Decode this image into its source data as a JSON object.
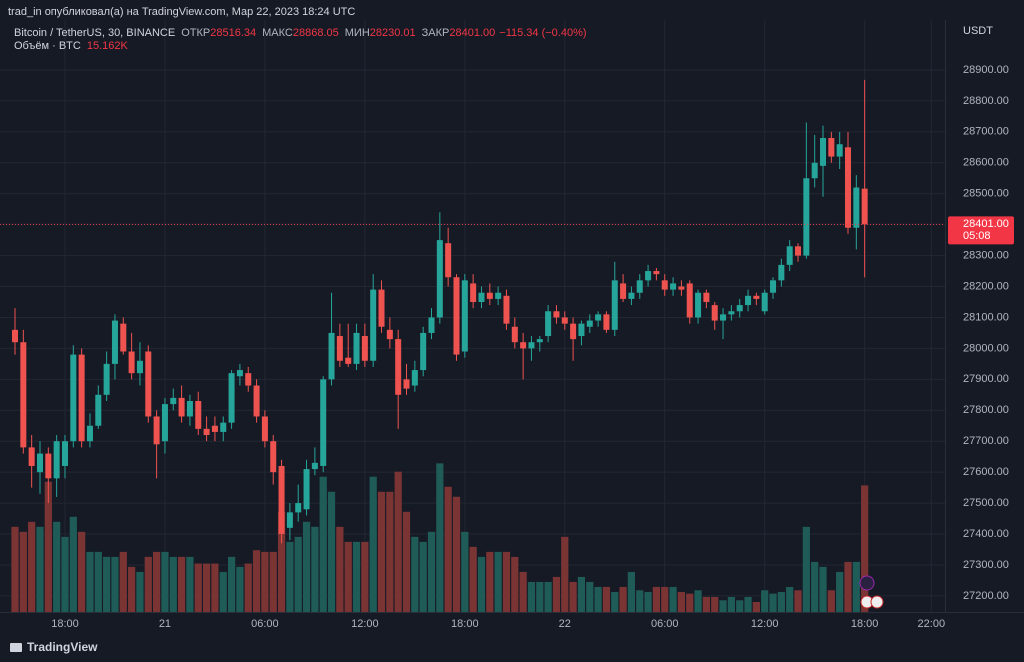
{
  "header": {
    "text": "trad_in опубликовал(а) на TradingView.com, Мар 22, 2023 18:24 UTC"
  },
  "footer": {
    "brand": "TradingView"
  },
  "chart_data": {
    "type": "candlestick",
    "legend": {
      "symbol": "Bitcoin / TetherUS, 30, BINANCE",
      "open_label": "ОТКР",
      "open": "28516.34",
      "high_label": "МАКС",
      "high": "28868.05",
      "low_label": "МИН",
      "low": "28230.01",
      "close_label": "ЗАКР",
      "close": "28401.00",
      "change": "−115.34 (−0.40%)",
      "volume_name": "Объём · BTC",
      "volume": "15.162K"
    },
    "y_axis_label": "USDT",
    "last_price": {
      "value": 28401,
      "label": "28401.00",
      "countdown": "05:08"
    },
    "categories": [
      null,
      null,
      null,
      null,
      null,
      null,
      "18:00",
      null,
      null,
      null,
      null,
      null,
      null,
      null,
      null,
      null,
      null,
      null,
      "21",
      null,
      null,
      null,
      null,
      null,
      null,
      null,
      null,
      null,
      null,
      null,
      "06:00",
      null,
      null,
      null,
      null,
      null,
      null,
      null,
      null,
      null,
      null,
      null,
      "12:00",
      null,
      null,
      null,
      null,
      null,
      null,
      null,
      null,
      null,
      null,
      null,
      "18:00",
      null,
      null,
      null,
      null,
      null,
      null,
      null,
      null,
      null,
      null,
      null,
      "22",
      null,
      null,
      null,
      null,
      null,
      null,
      null,
      null,
      null,
      null,
      null,
      "06:00",
      null,
      null,
      null,
      null,
      null,
      null,
      null,
      null,
      null,
      null,
      null,
      "12:00",
      null,
      null,
      null,
      null,
      null,
      null,
      null,
      null,
      null,
      null,
      null,
      "18:00",
      null,
      null,
      null,
      null,
      null,
      null,
      null,
      "22:00"
    ],
    "open": [
      28060,
      28020,
      27680,
      27600,
      27660,
      27580,
      27620,
      27700,
      27980,
      27700,
      27750,
      27850,
      27950,
      28080,
      27990,
      27920,
      27990,
      27780,
      27700,
      27820,
      27840,
      27780,
      27830,
      27740,
      27750,
      27730,
      27760,
      27910,
      27920,
      27880,
      27780,
      27700,
      27620,
      27420,
      27470,
      27480,
      27610,
      27620,
      27900,
      28040,
      27970,
      27950,
      28040,
      27960,
      28190,
      28060,
      28030,
      27900,
      27880,
      27930,
      28050,
      28100,
      28340,
      28230,
      27990,
      28210,
      28150,
      28180,
      28160,
      28170,
      28070,
      28020,
      28000,
      28020,
      28040,
      28120,
      28100,
      28080,
      28040,
      28070,
      28090,
      28110,
      28060,
      28210,
      28160,
      28180,
      28220,
      28250,
      28220,
      28190,
      28200,
      28210,
      28100,
      28180,
      28140,
      28090,
      28110,
      28120,
      28140,
      28170,
      28120,
      28180,
      28220,
      28270,
      28330,
      28300,
      28550,
      28590,
      28680,
      28620,
      28650,
      28390,
      28516.34,
      null,
      null,
      null,
      null,
      null,
      null,
      null,
      null
    ],
    "high": [
      28130,
      28060,
      27720,
      27700,
      27680,
      27720,
      27720,
      28010,
      28000,
      27790,
      27880,
      27990,
      28110,
      28100,
      28050,
      28020,
      28010,
      27800,
      27840,
      27870,
      27880,
      27850,
      27860,
      27780,
      27780,
      27780,
      27930,
      27950,
      27940,
      27900,
      27800,
      27720,
      27640,
      27500,
      27560,
      27640,
      27680,
      27910,
      28180,
      28080,
      28080,
      28080,
      28080,
      28240,
      28220,
      28100,
      28060,
      27950,
      27960,
      28070,
      28130,
      28440,
      28390,
      28240,
      28240,
      28240,
      28200,
      28210,
      28200,
      28190,
      28100,
      28050,
      28040,
      28040,
      28140,
      28140,
      28120,
      28100,
      28090,
      28110,
      28120,
      28120,
      28280,
      28240,
      28200,
      28240,
      28270,
      28260,
      28240,
      28230,
      28220,
      28220,
      28190,
      28190,
      28150,
      28130,
      28140,
      28160,
      28190,
      28180,
      28190,
      28230,
      28290,
      28350,
      28340,
      28730,
      28690,
      28720,
      28700,
      28700,
      28700,
      28560,
      28868.05,
      null,
      null,
      null,
      null,
      null,
      null,
      null,
      null
    ],
    "low": [
      27980,
      27660,
      27550,
      27530,
      27500,
      27520,
      27580,
      27680,
      27680,
      27680,
      27740,
      27830,
      27900,
      27980,
      27900,
      27880,
      27760,
      27580,
      27660,
      27800,
      27760,
      27750,
      27720,
      27700,
      27700,
      27700,
      27740,
      27880,
      27860,
      27760,
      27680,
      27560,
      27370,
      27380,
      27440,
      27460,
      27590,
      27600,
      27880,
      27940,
      27940,
      27930,
      27940,
      27940,
      28050,
      28000,
      27740,
      27850,
      27860,
      27910,
      28030,
      28080,
      28200,
      27960,
      27970,
      28130,
      28130,
      28140,
      28140,
      28060,
      28000,
      27900,
      27960,
      27990,
      28020,
      28080,
      28060,
      27960,
      28010,
      28050,
      28070,
      28050,
      28040,
      28150,
      28140,
      28160,
      28200,
      28220,
      28170,
      28170,
      28170,
      28080,
      28080,
      28130,
      28060,
      28030,
      28090,
      28100,
      28120,
      28140,
      28110,
      28160,
      28200,
      28250,
      28280,
      28290,
      28520,
      28490,
      28600,
      28580,
      28370,
      28320,
      28230.01,
      null,
      null,
      null,
      null,
      null,
      null,
      null,
      null
    ],
    "close": [
      28020,
      27680,
      27620,
      27660,
      27580,
      27700,
      27700,
      27980,
      27700,
      27750,
      27850,
      27950,
      28090,
      27990,
      27920,
      27960,
      27780,
      27690,
      27820,
      27840,
      27780,
      27830,
      27740,
      27720,
      27730,
      27760,
      27920,
      27930,
      27880,
      27780,
      27700,
      27600,
      27400,
      27470,
      27500,
      27610,
      27630,
      27900,
      28050,
      27960,
      27950,
      28050,
      27960,
      28190,
      28070,
      28030,
      27850,
      27870,
      27930,
      28050,
      28100,
      28350,
      28230,
      27980,
      28220,
      28150,
      28180,
      28160,
      28180,
      28080,
      28020,
      28000,
      28020,
      28030,
      28120,
      28100,
      28080,
      28030,
      28080,
      28090,
      28110,
      28060,
      28220,
      28160,
      28180,
      28220,
      28250,
      28240,
      28190,
      28210,
      28190,
      28100,
      28180,
      28150,
      28090,
      28110,
      28120,
      28140,
      28170,
      28160,
      28180,
      28220,
      28270,
      28330,
      28300,
      28550,
      28600,
      28680,
      28620,
      28660,
      28390,
      28520,
      28401,
      null,
      null,
      null,
      null,
      null,
      null,
      null,
      null
    ],
    "volume": [
      10200,
      9600,
      10800,
      10200,
      15600,
      10800,
      9000,
      11400,
      9600,
      7200,
      7200,
      6600,
      6600,
      7200,
      5400,
      4800,
      6600,
      7200,
      7200,
      6600,
      6600,
      6600,
      5800,
      5800,
      5800,
      4800,
      6600,
      5400,
      5800,
      7400,
      7200,
      7200,
      12000,
      8400,
      9000,
      10800,
      10200,
      16200,
      14400,
      10200,
      8400,
      8400,
      8400,
      16200,
      14400,
      14400,
      16800,
      12000,
      9000,
      8400,
      9600,
      17800,
      15000,
      13800,
      9600,
      7800,
      6600,
      7200,
      7200,
      7200,
      6600,
      4800,
      3600,
      3600,
      3600,
      4200,
      9000,
      3600,
      4200,
      3600,
      3000,
      3000,
      2400,
      3000,
      4800,
      2600,
      2400,
      3000,
      3000,
      3000,
      2400,
      2200,
      2600,
      1800,
      1800,
      1400,
      1800,
      1400,
      1800,
      1200,
      2600,
      2200,
      2400,
      3000,
      2600,
      10200,
      6000,
      5400,
      2600,
      4800,
      6000,
      6000,
      15162,
      null,
      null,
      null,
      null,
      null,
      null,
      null,
      null
    ],
    "ylim": [
      27148,
      29055
    ],
    "volume_ylim": [
      0,
      20000
    ],
    "yticks": [
      {
        "value": 27200,
        "label": "27200.00"
      },
      {
        "value": 27300,
        "label": "27300.00"
      },
      {
        "value": 27400,
        "label": "27400.00"
      },
      {
        "value": 27500,
        "label": "27500.00"
      },
      {
        "value": 27600,
        "label": "27600.00"
      },
      {
        "value": 27700,
        "label": "27700.00"
      },
      {
        "value": 27800,
        "label": "27800.00"
      },
      {
        "value": 27900,
        "label": "27900.00"
      },
      {
        "value": 28000,
        "label": "28000.00"
      },
      {
        "value": 28100,
        "label": "28100.00"
      },
      {
        "value": 28200,
        "label": "28200.00"
      },
      {
        "value": 28300,
        "label": "28300.00"
      },
      {
        "value": 28400,
        "label": "28400.00"
      },
      {
        "value": 28500,
        "label": "28500.00"
      },
      {
        "value": 28600,
        "label": "28600.00"
      },
      {
        "value": 28700,
        "label": "28700.00"
      },
      {
        "value": 28800,
        "label": "28800.00"
      },
      {
        "value": 28900,
        "label": "28900.00"
      }
    ],
    "grid": true,
    "up_color": "#26a69a",
    "down_color": "#ef5350",
    "volume_up_color": "#1f5c58",
    "volume_down_color": "#7b3434"
  }
}
